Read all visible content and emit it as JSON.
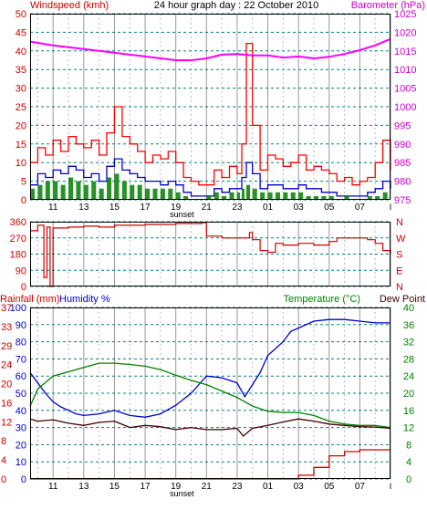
{
  "chart_data": [
    {
      "id": "wind_baro",
      "type": "line",
      "title": "24 hour graph day : 22 October 2010",
      "ylabel_left": "Windspeed (kmh)",
      "ylabel_right": "Barometer (hPa)",
      "ylim_left": [
        0,
        50
      ],
      "ylim_right": [
        975,
        1025
      ],
      "yticks_left": [
        0,
        5,
        10,
        15,
        20,
        25,
        30,
        35,
        40,
        45,
        50
      ],
      "yticks_right": [
        975,
        980,
        985,
        990,
        995,
        1000,
        1005,
        1010,
        1015,
        1020,
        1025
      ],
      "x_ticks": [
        "11",
        "13",
        "15",
        "17",
        "19",
        "21",
        "23",
        "01",
        "03",
        "05",
        "07"
      ],
      "sunset_label": "sunset",
      "grid": true,
      "colors": {
        "gust": "#ff0000",
        "average": "#0000cc",
        "direction": "#008000",
        "barometer": "#ff00ff"
      },
      "series": [
        {
          "key": "gust",
          "axis": "left",
          "x": [
            9.5,
            10,
            10.5,
            11,
            11.5,
            12,
            12.5,
            13,
            13.5,
            14,
            14.5,
            15,
            15.5,
            16,
            16.5,
            17,
            17.5,
            18,
            18.5,
            19,
            19.5,
            20,
            20.5,
            21,
            21.5,
            22,
            22.5,
            23,
            23.3,
            23.6,
            24,
            24.5,
            25,
            25.5,
            26,
            26.5,
            27,
            27.5,
            28,
            28.5,
            29,
            29.5,
            30,
            30.5,
            31,
            31.5,
            32,
            32.5,
            33
          ],
          "values": [
            10,
            14,
            12,
            16,
            13,
            17,
            15,
            14,
            16,
            12,
            18,
            25,
            17,
            15,
            13,
            10,
            12,
            11,
            13,
            10,
            6,
            5,
            4,
            4,
            8,
            6,
            9,
            7,
            15,
            42,
            20,
            8,
            12,
            11,
            9,
            10,
            12,
            8,
            9,
            8,
            7,
            5,
            6,
            4,
            5,
            6,
            10,
            16,
            8
          ]
        },
        {
          "key": "average",
          "axis": "left",
          "x": [
            9.5,
            10,
            10.5,
            11,
            11.5,
            12,
            12.5,
            13,
            13.5,
            14,
            14.5,
            15,
            15.5,
            16,
            16.5,
            17,
            17.5,
            18,
            18.5,
            19,
            19.5,
            20,
            20.5,
            21,
            21.5,
            22,
            22.5,
            23,
            23.3,
            23.6,
            24,
            24.5,
            25,
            25.5,
            26,
            26.5,
            27,
            27.5,
            28,
            28.5,
            29,
            29.5,
            30,
            30.5,
            31,
            31.5,
            32,
            32.5,
            33
          ],
          "values": [
            4,
            7,
            6,
            8,
            7,
            9,
            8,
            6,
            7,
            5,
            9,
            11,
            8,
            7,
            6,
            5,
            5,
            4,
            5,
            4,
            2,
            1,
            1,
            1,
            3,
            2,
            3,
            3,
            6,
            10,
            7,
            3,
            4,
            4,
            3,
            3,
            4,
            3,
            3,
            2,
            2,
            1,
            1,
            1,
            1,
            2,
            3,
            5,
            3
          ]
        },
        {
          "key": "direction",
          "axis": "left",
          "x": [
            9.5,
            10,
            10.5,
            11,
            11.5,
            12,
            12.5,
            13,
            13.5,
            14,
            14.5,
            15,
            15.5,
            16,
            16.5,
            17,
            17.5,
            18,
            18.5,
            19,
            19.5,
            20,
            20.5,
            21,
            21.5,
            22,
            22.5,
            23,
            23.3,
            23.6,
            24,
            24.5,
            25,
            25.5,
            26,
            26.5,
            27,
            27.5,
            28,
            28.5,
            29,
            29.5,
            30,
            30.5,
            31,
            31.5,
            32,
            32.5,
            33
          ],
          "values": [
            3,
            4,
            5,
            5,
            4,
            6,
            5,
            4,
            5,
            3,
            6,
            7,
            5,
            4,
            4,
            3,
            3,
            3,
            3,
            2,
            1,
            0,
            0,
            1,
            2,
            1,
            2,
            2,
            3,
            4,
            3,
            2,
            2,
            2,
            2,
            2,
            2,
            1,
            1,
            1,
            1,
            0,
            1,
            0,
            0,
            1,
            1,
            2,
            1
          ]
        },
        {
          "key": "barometer",
          "axis": "right",
          "x": [
            9.5,
            11,
            13,
            15,
            17,
            19,
            20,
            21,
            22,
            23,
            24,
            25,
            26,
            27,
            28,
            29,
            30,
            31,
            32,
            33
          ],
          "values": [
            1017.5,
            1016.5,
            1015.5,
            1014.5,
            1013.5,
            1012.5,
            1012.5,
            1013,
            1014,
            1014.2,
            1013.8,
            1013.8,
            1013.2,
            1013.5,
            1013,
            1013.4,
            1014.2,
            1015.2,
            1016.5,
            1018.2
          ]
        }
      ]
    },
    {
      "id": "direction",
      "type": "line",
      "ylim": [
        0,
        360
      ],
      "yticks_left": [
        0,
        90,
        180,
        270,
        360
      ],
      "yticks_right": [
        "N",
        "E",
        "S",
        "W",
        "N"
      ],
      "colors": {
        "direction": "#cc0000"
      },
      "series": [
        {
          "key": "direction",
          "x": [
            9.5,
            10,
            10.4,
            10.6,
            10.8,
            11,
            12,
            13,
            14,
            15,
            16,
            17,
            18,
            19,
            20,
            20.7,
            21,
            22,
            23,
            23.8,
            24,
            24.5,
            25,
            25.5,
            26,
            27,
            28,
            29,
            29.5,
            30,
            31,
            31.5,
            32,
            32.5,
            33
          ],
          "values": [
            310,
            340,
            50,
            330,
            0,
            325,
            330,
            335,
            330,
            340,
            340,
            345,
            345,
            350,
            350,
            355,
            280,
            270,
            270,
            300,
            260,
            200,
            190,
            240,
            230,
            240,
            230,
            250,
            270,
            270,
            270,
            260,
            240,
            200,
            180
          ]
        }
      ]
    },
    {
      "id": "rain_hum_temp",
      "type": "line",
      "ylabel_left": "Rainfall (mm)",
      "ylabel_left2": "Humidity %",
      "ylabel_right": "Temperature (°C)",
      "ylabel_right2": "Dew Point",
      "ylim_left_humidity": [
        0,
        100
      ],
      "ylim_left_rain": [
        0,
        37
      ],
      "ylim_right": [
        0,
        40
      ],
      "yticks_humidity": [
        0,
        10,
        20,
        30,
        40,
        50,
        60,
        70,
        80,
        90,
        100
      ],
      "yticks_rain": [
        0,
        4,
        8,
        12,
        16,
        20,
        24,
        29,
        33,
        37
      ],
      "yticks_right": [
        0,
        4,
        8,
        12,
        16,
        20,
        24,
        28,
        32,
        36,
        40
      ],
      "x_ticks": [
        "11",
        "13",
        "15",
        "17",
        "19",
        "21",
        "23",
        "01",
        "03",
        "05",
        "07"
      ],
      "sunset_label": "sunset",
      "colors": {
        "temperature": "#008000",
        "dew_point": "#400000",
        "humidity": "#0000cc",
        "rainfall": "#cc0000"
      },
      "series": [
        {
          "key": "humidity",
          "x": [
            9.5,
            10,
            10.5,
            11,
            11.5,
            12,
            12.5,
            13,
            14,
            15,
            16,
            17,
            18,
            19,
            20,
            21,
            22,
            23,
            23.5,
            24,
            24.5,
            25,
            26,
            26.5,
            27,
            28,
            29,
            30,
            31,
            32,
            33
          ],
          "values": [
            62,
            56,
            50,
            45,
            42,
            40,
            38,
            37,
            38,
            40,
            37,
            36,
            38,
            43,
            50,
            60,
            59,
            56,
            48,
            55,
            62,
            72,
            80,
            86,
            88,
            92,
            93,
            93,
            92,
            91,
            91
          ]
        },
        {
          "key": "temperature",
          "x": [
            9.5,
            10,
            11,
            12,
            13,
            14,
            15,
            16,
            17,
            18,
            19,
            20,
            21,
            22,
            23,
            24,
            25,
            26,
            27,
            28,
            29,
            30,
            31,
            32,
            33
          ],
          "values": [
            17,
            21,
            24,
            25,
            26,
            27,
            27,
            26.7,
            26.3,
            25.5,
            24.2,
            23,
            22,
            20.5,
            19,
            17,
            15.8,
            15.5,
            15.5,
            14.8,
            13.5,
            12.8,
            12.5,
            12.5,
            12
          ]
        },
        {
          "key": "dew_point",
          "x": [
            9.5,
            10,
            11,
            12,
            13,
            14,
            15,
            16,
            17,
            18,
            19,
            20,
            21,
            22,
            23,
            23.4,
            24,
            25,
            26,
            27,
            28,
            29,
            30,
            31,
            32,
            33
          ],
          "values": [
            14,
            13.5,
            13.8,
            13,
            12.5,
            13.2,
            13.5,
            12,
            12.5,
            12.2,
            11.5,
            12,
            11.5,
            11.5,
            11.8,
            10,
            11.8,
            12.5,
            13.3,
            14,
            13.5,
            12.8,
            12.5,
            12.2,
            12.1,
            11.8
          ]
        },
        {
          "key": "rainfall",
          "x": [
            9.5,
            20,
            26.5,
            27,
            28,
            29,
            30,
            31,
            32,
            33
          ],
          "values": [
            0,
            0,
            0,
            0.8,
            2.5,
            5,
            5.9,
            6.3,
            6.3,
            6.3
          ]
        }
      ]
    }
  ]
}
